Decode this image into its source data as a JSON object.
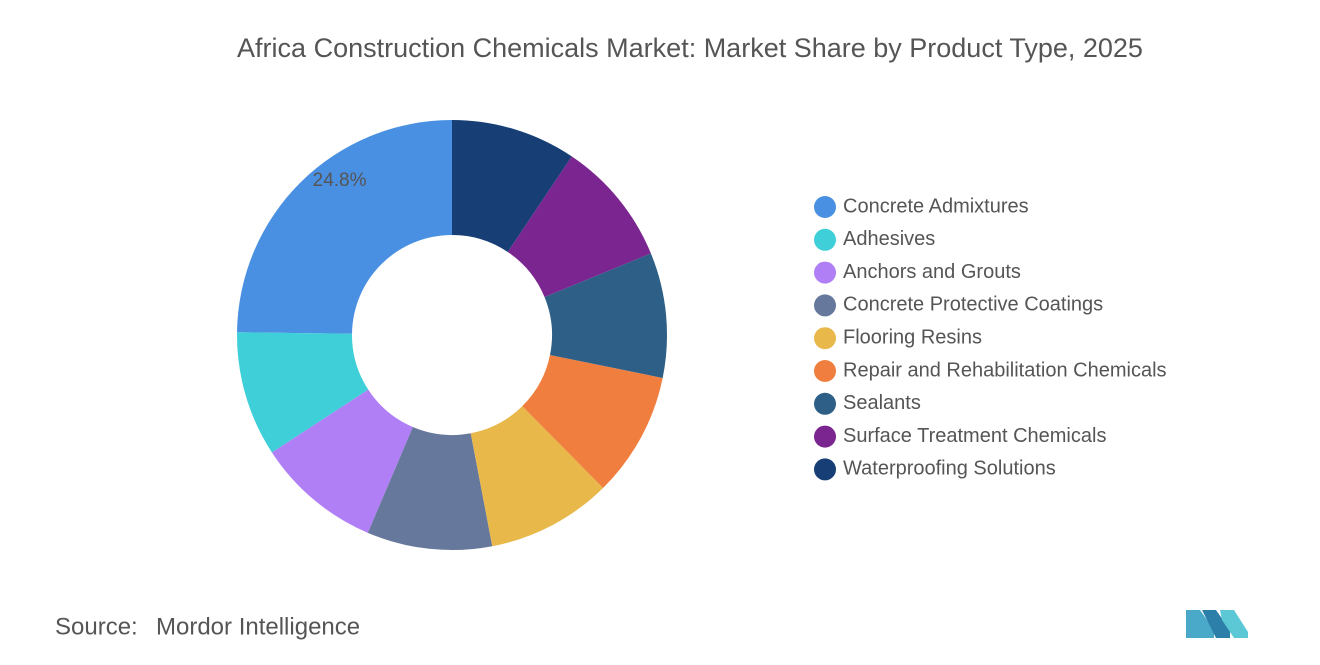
{
  "chart_data": {
    "type": "donut",
    "title": "Africa Construction Chemicals Market: Market Share by Product Type, 2025",
    "categories": [
      "Concrete Admixtures",
      "Adhesives",
      "Anchors and Grouts",
      "Concrete Protective Coatings",
      "Flooring Resins",
      "Repair and Rehabilitation Chemicals",
      "Sealants",
      "Surface Treatment Chemicals",
      "Waterproofing Solutions"
    ],
    "values": [
      24.8,
      9.4,
      9.4,
      9.4,
      9.4,
      9.4,
      9.4,
      9.4,
      9.4
    ],
    "value_labels": [
      "24.8%",
      null,
      null,
      null,
      null,
      null,
      null,
      null,
      null
    ],
    "colors": [
      "#4a90e2",
      "#3fcfd9",
      "#b07ff5",
      "#66789b",
      "#e9b84b",
      "#f07f3f",
      "#2e5f86",
      "#7a2590",
      "#173f75"
    ],
    "source_label": "Source:",
    "source": "Mordor Intelligence"
  }
}
